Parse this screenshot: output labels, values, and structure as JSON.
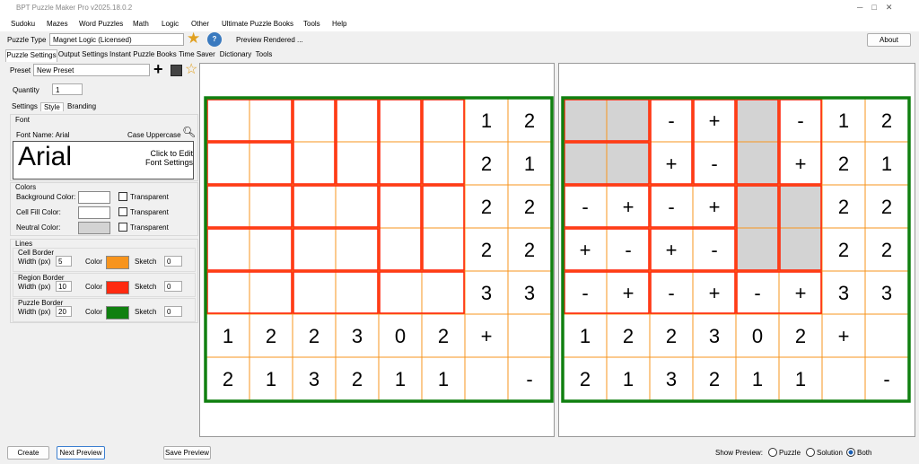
{
  "window": {
    "title": "BPT Puzzle Maker Pro v2025.18.0.2"
  },
  "menu": [
    "Sudoku",
    "Mazes",
    "Word Puzzles",
    "Math",
    "Logic",
    "Other",
    "Ultimate Puzzle Books",
    "Tools",
    "Help"
  ],
  "toolbar": {
    "puzzle_type_label": "Puzzle Type",
    "puzzle_type": "Magnet Logic (Licensed)",
    "help": "?",
    "status": "Preview Rendered ...",
    "about": "About"
  },
  "tabs": [
    "Puzzle Settings",
    "Output Settings",
    "Instant Puzzle Books",
    "Time Saver",
    "Dictionary",
    "Tools"
  ],
  "preset": {
    "label": "Preset",
    "value": "New Preset"
  },
  "quantity": {
    "label": "Quantity",
    "value": 1
  },
  "subtabs": [
    "Settings",
    "Style",
    "Branding"
  ],
  "font": {
    "group": "Font",
    "name_label": "Font Name: Arial",
    "case": "Case Uppercase",
    "preview": "Arial",
    "edit": "Click to Edit Font Settings"
  },
  "colors": {
    "group": "Colors",
    "rows": [
      {
        "label": "Background Color:",
        "check": "Transparent",
        "color": "#ffffff"
      },
      {
        "label": "Cell Fill Color:",
        "check": "Transparent",
        "color": "#ffffff"
      },
      {
        "label": "Neutral Color:",
        "check": "Transparent",
        "color": "#d3d3d3"
      }
    ]
  },
  "lines": {
    "group": "Lines",
    "items": [
      {
        "title": "Cell Border",
        "width_label": "Width (px)",
        "width": 5,
        "color_label": "Color",
        "color": "#f7941d",
        "sketch_label": "Sketch",
        "sketch": 0
      },
      {
        "title": "Region Border",
        "width_label": "Width (px)",
        "width": 10,
        "color_label": "Color",
        "color": "#ff2a10",
        "sketch_label": "Sketch",
        "sketch": 0
      },
      {
        "title": "Puzzle Border",
        "width_label": "Width (px)",
        "width": 20,
        "color_label": "Color",
        "color": "#108010",
        "sketch_label": "Sketch",
        "sketch": 0
      }
    ]
  },
  "puzzle": {
    "rows": [
      [
        null,
        null,
        null,
        null,
        null,
        null,
        1,
        2
      ],
      [
        null,
        null,
        null,
        null,
        null,
        null,
        2,
        1
      ],
      [
        null,
        null,
        null,
        null,
        null,
        null,
        2,
        2
      ],
      [
        null,
        null,
        null,
        null,
        null,
        null,
        2,
        2
      ],
      [
        null,
        null,
        null,
        null,
        null,
        null,
        3,
        3
      ],
      [
        1,
        2,
        2,
        3,
        0,
        2,
        "+",
        null
      ],
      [
        2,
        1,
        3,
        2,
        1,
        1,
        null,
        "-"
      ]
    ]
  },
  "solution": {
    "rows": [
      [
        null,
        null,
        "-",
        "+",
        null,
        "-",
        1,
        2
      ],
      [
        null,
        null,
        "+",
        "-",
        null,
        "+",
        2,
        1
      ],
      [
        "-",
        "+",
        "-",
        "+",
        null,
        null,
        2,
        2
      ],
      [
        "+",
        "-",
        "+",
        "-",
        null,
        null,
        2,
        2
      ],
      [
        "-",
        "+",
        "-",
        "+",
        "-",
        "+",
        3,
        3
      ],
      [
        1,
        2,
        2,
        3,
        0,
        2,
        "+",
        null
      ],
      [
        2,
        1,
        3,
        2,
        1,
        1,
        null,
        "-"
      ]
    ]
  },
  "footer": {
    "create": "Create",
    "next": "Next Preview",
    "save": "Save Preview",
    "show_label": "Show Preview:",
    "options": [
      "Puzzle",
      "Solution",
      "Both"
    ]
  }
}
